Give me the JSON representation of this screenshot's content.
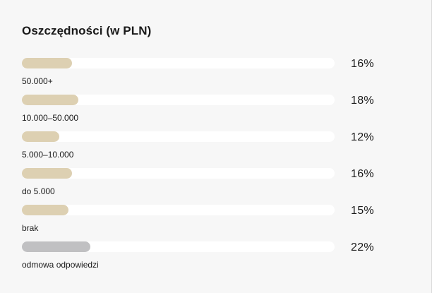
{
  "title": "Oszczędności (w PLN)",
  "colors": {
    "accent": "#ddd0b2",
    "refusal": "#c0c0c2",
    "track": "#ffffff"
  },
  "chart_data": {
    "type": "bar",
    "orientation": "horizontal",
    "title": "Oszczędności (w PLN)",
    "categories": [
      "50.000+",
      "10.000–50.000",
      "5.000–10.000",
      "do 5.000",
      "brak",
      "odmowa odpowiedzi"
    ],
    "values": [
      16,
      18,
      12,
      16,
      15,
      22
    ],
    "value_labels": [
      "16%",
      "18%",
      "12%",
      "16%",
      "15%",
      "22%"
    ],
    "unit": "%",
    "xlim": [
      0,
      100
    ],
    "grid": false,
    "legend": "none"
  }
}
